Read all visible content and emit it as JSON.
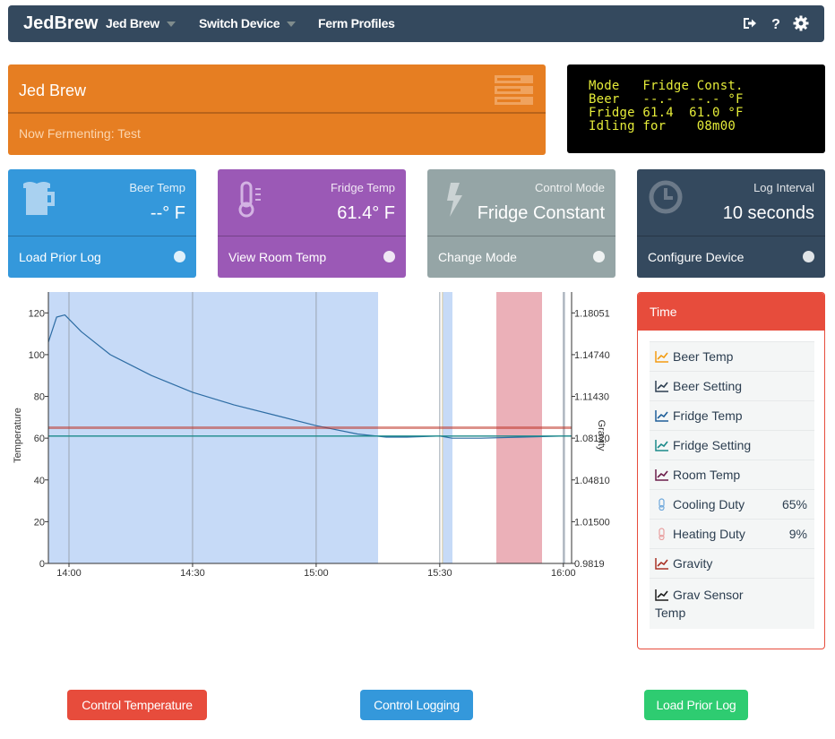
{
  "navbar": {
    "brand": "JedBrew",
    "items": [
      {
        "label": "Jed Brew"
      },
      {
        "label": "Switch Device"
      },
      {
        "label": "Ferm Profiles"
      }
    ],
    "icons": [
      "sign-out-icon",
      "help-icon",
      "settings-gear-icon"
    ]
  },
  "brew": {
    "title": "Jed Brew",
    "subtitle": "Now Fermenting: Test"
  },
  "lcd": {
    "lines": [
      "Mode   Fridge Const.",
      "Beer   --.-  --.- °F",
      "Fridge 61.4  61.0 °F",
      "Idling for    08m00"
    ]
  },
  "stats": [
    {
      "label": "Beer Temp",
      "value": "--° F",
      "footer": "Load Prior Log",
      "color": "#3498db"
    },
    {
      "label": "Fridge Temp",
      "value": "61.4° F",
      "footer": "View Room Temp",
      "color": "#9b59b6"
    },
    {
      "label": "Control Mode",
      "value": "Fridge Constant",
      "footer": "Change Mode",
      "color": "#95a5a6"
    },
    {
      "label": "Log Interval",
      "value": "10 seconds",
      "footer": "Configure Device",
      "color": "#34495e"
    }
  ],
  "legend": {
    "header": "Time",
    "items": [
      {
        "label": "Beer Temp",
        "icon": "line-chart-icon",
        "color": "#f39c12"
      },
      {
        "label": "Beer Setting",
        "icon": "line-chart-icon",
        "color": "#2c3e50"
      },
      {
        "label": "Fridge Temp",
        "icon": "line-chart-icon",
        "color": "#1f5f99"
      },
      {
        "label": "Fridge Setting",
        "icon": "line-chart-icon",
        "color": "#1b8a8a"
      },
      {
        "label": "Room Temp",
        "icon": "line-chart-icon",
        "color": "#6b1d4a"
      },
      {
        "label": "Cooling Duty",
        "icon": "thermometer-icon",
        "color": "#6fa8dc",
        "value": "65%"
      },
      {
        "label": "Heating Duty",
        "icon": "thermometer-icon",
        "color": "#e8a0a0",
        "value": "9%"
      },
      {
        "label": "Gravity",
        "icon": "line-chart-icon",
        "color": "#a93226"
      },
      {
        "label": "Grav Sensor Temp",
        "icon": "line-chart-icon",
        "color": "#1c1c1c"
      }
    ]
  },
  "buttons": [
    {
      "label": "Control Temperature",
      "color": "#e74c3c"
    },
    {
      "label": "Control Logging",
      "color": "#3498db"
    },
    {
      "label": "Load Prior Log",
      "color": "#2ecc71"
    }
  ],
  "chart_data": {
    "type": "line",
    "ylabel": "Temperature",
    "y2label": "Gravity",
    "ylim": [
      0,
      130
    ],
    "y_ticks": [
      "0",
      "20",
      "40",
      "60",
      "80",
      "100",
      "120"
    ],
    "y2_ticks": [
      "0.9819",
      "1.01500",
      "1.04810",
      "1.08120",
      "1.11430",
      "1.14740",
      "1.18051"
    ],
    "x_ticks": [
      "14:00",
      "14:30",
      "15:00",
      "15:30",
      "16:00"
    ],
    "series": [
      {
        "name": "Fridge Temp",
        "color": "#2e6da4",
        "x": [
          "13:55",
          "13:57",
          "13:59",
          "14:03",
          "14:10",
          "14:20",
          "14:30",
          "14:40",
          "14:50",
          "15:00",
          "15:10",
          "15:17",
          "15:22",
          "15:30",
          "15:33",
          "15:40",
          "15:50",
          "16:00",
          "16:02"
        ],
        "values": [
          106,
          118,
          119,
          111,
          100,
          90,
          82,
          76,
          71,
          66,
          62,
          60.5,
          60.5,
          61,
          60,
          60,
          60.5,
          61,
          61
        ]
      },
      {
        "name": "Fridge Setting",
        "color": "#1b8a8a",
        "x": [
          "13:55",
          "16:02"
        ],
        "values": [
          61,
          61
        ]
      },
      {
        "name": "Room Temp",
        "color": "#c0392b",
        "x": [
          "13:55",
          "16:02"
        ],
        "values": [
          65,
          65
        ]
      }
    ]
  }
}
